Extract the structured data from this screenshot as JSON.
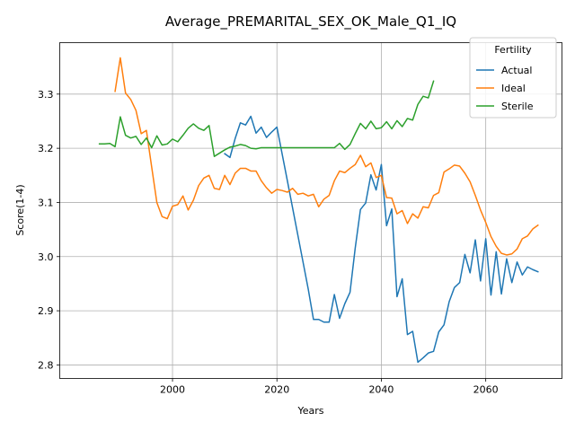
{
  "chart_data": {
    "type": "line",
    "title": "Average_PREMARITAL_SEX_OK_Male_Q1_IQ",
    "xlabel": "Years",
    "ylabel": "Score(1-4)",
    "xlim": [
      1978.4,
      2074.6
    ],
    "ylim": [
      2.775,
      3.395
    ],
    "xticks": [
      2000,
      2020,
      2040,
      2060
    ],
    "yticks": [
      2.8,
      2.9,
      3.0,
      3.1,
      3.2,
      3.3
    ],
    "grid": true,
    "legend": {
      "title": "Fertility",
      "placement": "top-right"
    },
    "series": [
      {
        "name": "Actual",
        "color": "#1f77b4",
        "x": [
          2010,
          2011,
          2012,
          2013,
          2014,
          2015,
          2016,
          2017,
          2018,
          2019,
          2020,
          2022,
          2024,
          2026,
          2027,
          2028,
          2029,
          2030,
          2031,
          2032,
          2033,
          2034,
          2035,
          2036,
          2037,
          2038,
          2039,
          2040,
          2041,
          2042,
          2043,
          2044,
          2045,
          2046,
          2047,
          2048,
          2049,
          2050,
          2051,
          2052,
          2053,
          2054,
          2055,
          2056,
          2057,
          2058,
          2059,
          2060,
          2061,
          2062,
          2063,
          2064,
          2065,
          2066,
          2067,
          2068,
          2069,
          2070
        ],
        "y": [
          3.19,
          3.183,
          3.218,
          3.247,
          3.243,
          3.259,
          3.228,
          3.239,
          3.22,
          3.23,
          3.239,
          3.14,
          3.04,
          2.94,
          2.884,
          2.884,
          2.879,
          2.879,
          2.93,
          2.886,
          2.913,
          2.934,
          3.016,
          3.087,
          3.099,
          3.151,
          3.123,
          3.17,
          3.057,
          3.088,
          2.926,
          2.959,
          2.856,
          2.862,
          2.805,
          2.813,
          2.822,
          2.825,
          2.861,
          2.874,
          2.917,
          2.943,
          2.952,
          3.004,
          2.97,
          3.031,
          2.955,
          3.033,
          2.929,
          3.009,
          2.931,
          2.996,
          2.952,
          2.99,
          2.966,
          2.981,
          2.976,
          2.972
        ]
      },
      {
        "name": "Ideal",
        "color": "#ff7f0e",
        "x": [
          1989,
          1990,
          1991,
          1992,
          1993,
          1994,
          1995,
          1996,
          1997,
          1998,
          1999,
          2000,
          2001,
          2002,
          2003,
          2004,
          2005,
          2006,
          2007,
          2008,
          2009,
          2010,
          2011,
          2012,
          2013,
          2014,
          2015,
          2016,
          2017,
          2018,
          2019,
          2020,
          2021,
          2022,
          2023,
          2024,
          2025,
          2026,
          2027,
          2028,
          2029,
          2030,
          2031,
          2032,
          2033,
          2034,
          2035,
          2036,
          2037,
          2038,
          2039,
          2040,
          2041,
          2042,
          2043,
          2044,
          2045,
          2046,
          2047,
          2048,
          2049,
          2050,
          2051,
          2052,
          2053,
          2054,
          2055,
          2056,
          2057,
          2058,
          2059,
          2060,
          2061,
          2062,
          2063,
          2064,
          2065,
          2066,
          2067,
          2068,
          2069,
          2070
        ],
        "y": [
          3.305,
          3.367,
          3.302,
          3.29,
          3.27,
          3.227,
          3.233,
          3.166,
          3.1,
          3.074,
          3.07,
          3.093,
          3.096,
          3.112,
          3.086,
          3.104,
          3.131,
          3.145,
          3.15,
          3.126,
          3.124,
          3.15,
          3.133,
          3.154,
          3.163,
          3.163,
          3.158,
          3.158,
          3.14,
          3.127,
          3.117,
          3.124,
          3.122,
          3.119,
          3.126,
          3.115,
          3.117,
          3.112,
          3.115,
          3.092,
          3.106,
          3.113,
          3.14,
          3.158,
          3.155,
          3.163,
          3.17,
          3.187,
          3.166,
          3.173,
          3.146,
          3.15,
          3.109,
          3.108,
          3.079,
          3.085,
          3.061,
          3.079,
          3.071,
          3.092,
          3.09,
          3.113,
          3.118,
          3.156,
          3.162,
          3.169,
          3.167,
          3.154,
          3.138,
          3.113,
          3.086,
          3.063,
          3.037,
          3.019,
          3.006,
          3.003,
          3.005,
          3.014,
          3.033,
          3.038,
          3.051,
          3.058
        ]
      },
      {
        "name": "Sterile",
        "color": "#2ca02c",
        "x": [
          1986,
          1987,
          1988,
          1989,
          1990,
          1991,
          1992,
          1993,
          1994,
          1995,
          1996,
          1997,
          1998,
          1999,
          2000,
          2001,
          2002,
          2003,
          2004,
          2005,
          2006,
          2007,
          2008,
          2009,
          2010,
          2011,
          2012,
          2013,
          2014,
          2015,
          2016,
          2017,
          2018,
          2019,
          2020,
          2022,
          2024,
          2026,
          2028,
          2030,
          2031,
          2032,
          2033,
          2034,
          2035,
          2036,
          2037,
          2038,
          2039,
          2040,
          2041,
          2042,
          2043,
          2044,
          2045,
          2046,
          2047,
          2048,
          2049,
          2050
        ],
        "y": [
          3.208,
          3.208,
          3.209,
          3.203,
          3.258,
          3.224,
          3.219,
          3.222,
          3.207,
          3.219,
          3.201,
          3.223,
          3.206,
          3.208,
          3.217,
          3.212,
          3.224,
          3.237,
          3.245,
          3.237,
          3.233,
          3.242,
          3.185,
          3.191,
          3.197,
          3.202,
          3.204,
          3.207,
          3.205,
          3.2,
          3.199,
          3.201,
          3.201,
          3.201,
          3.201,
          3.201,
          3.201,
          3.201,
          3.201,
          3.201,
          3.201,
          3.209,
          3.198,
          3.207,
          3.227,
          3.246,
          3.236,
          3.25,
          3.236,
          3.238,
          3.249,
          3.236,
          3.251,
          3.24,
          3.255,
          3.252,
          3.281,
          3.296,
          3.293,
          3.324
        ]
      }
    ]
  }
}
